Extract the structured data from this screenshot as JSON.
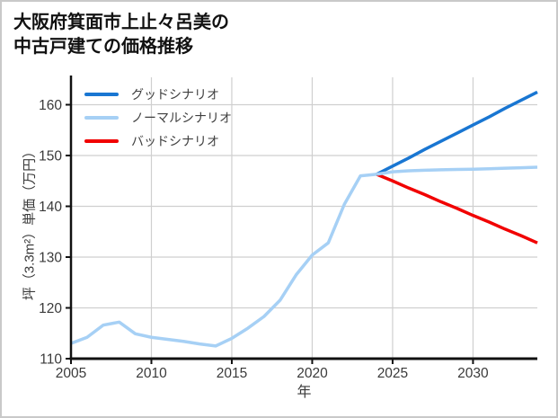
{
  "page": {
    "title_line1": "大阪府箕面市上止々呂美の",
    "title_line2": "中古戸建ての価格推移"
  },
  "legend": {
    "items": [
      {
        "label": "グッドシナリオ",
        "color": "#1976d2"
      },
      {
        "label": "ノーマルシナリオ",
        "color": "#a6d0f5"
      },
      {
        "label": "バッドシナリオ",
        "color": "#f10000"
      }
    ]
  },
  "colors": {
    "good": "#1976d2",
    "normal": "#a6d0f5",
    "bad": "#f10000",
    "grid": "#cfcfcf",
    "spine": "#111111",
    "tick_text": "#3a3a3a"
  },
  "chart_data": {
    "type": "line",
    "title": "大阪府箕面市上止々呂美の中古戸建ての価格推移",
    "xlabel": "年",
    "ylabel": "坪（3.3m²）単価（万円）",
    "xlim": [
      2005,
      2034
    ],
    "ylim": [
      110,
      165.4
    ],
    "x_ticks": [
      2005,
      2010,
      2015,
      2020,
      2025,
      2030
    ],
    "y_ticks": [
      110,
      120,
      130,
      140,
      150,
      160
    ],
    "grid": true,
    "legend_position": "upper-left",
    "series": [
      {
        "name": "グッドシナリオ",
        "segment": "forecast",
        "color": "#1976d2",
        "x": [
          2024,
          2025,
          2026,
          2027,
          2028,
          2029,
          2030,
          2031,
          2032,
          2033,
          2034
        ],
        "y": [
          146.3,
          147.9,
          149.5,
          151.2,
          152.8,
          154.4,
          156.0,
          157.6,
          159.3,
          160.9,
          162.5
        ]
      },
      {
        "name": "バッドシナリオ",
        "segment": "forecast",
        "color": "#f10000",
        "x": [
          2024,
          2025,
          2026,
          2027,
          2028,
          2029,
          2030,
          2031,
          2032,
          2033,
          2034
        ],
        "y": [
          146.3,
          145.0,
          143.6,
          142.3,
          140.9,
          139.6,
          138.2,
          136.9,
          135.5,
          134.2,
          132.8
        ]
      },
      {
        "name": "ノーマルシナリオ",
        "segment": "forecast",
        "color": "#a6d0f5",
        "x": [
          2024,
          2025,
          2026,
          2027,
          2028,
          2029,
          2030,
          2031,
          2032,
          2033,
          2034
        ],
        "y": [
          146.3,
          146.8,
          147.0,
          147.1,
          147.2,
          147.25,
          147.3,
          147.4,
          147.5,
          147.6,
          147.7
        ]
      },
      {
        "name": "ノーマルシナリオ",
        "segment": "history",
        "color": "#a6d0f5",
        "x": [
          2005,
          2006,
          2007,
          2008,
          2009,
          2010,
          2011,
          2012,
          2013,
          2014,
          2015,
          2016,
          2017,
          2018,
          2019,
          2020,
          2021,
          2022,
          2023,
          2024
        ],
        "y": [
          113.0,
          114.2,
          116.6,
          117.2,
          114.9,
          114.2,
          113.8,
          113.4,
          112.9,
          112.5,
          114.0,
          116.0,
          118.3,
          121.5,
          126.5,
          130.4,
          132.8,
          140.4,
          146.0,
          146.3
        ]
      }
    ]
  }
}
